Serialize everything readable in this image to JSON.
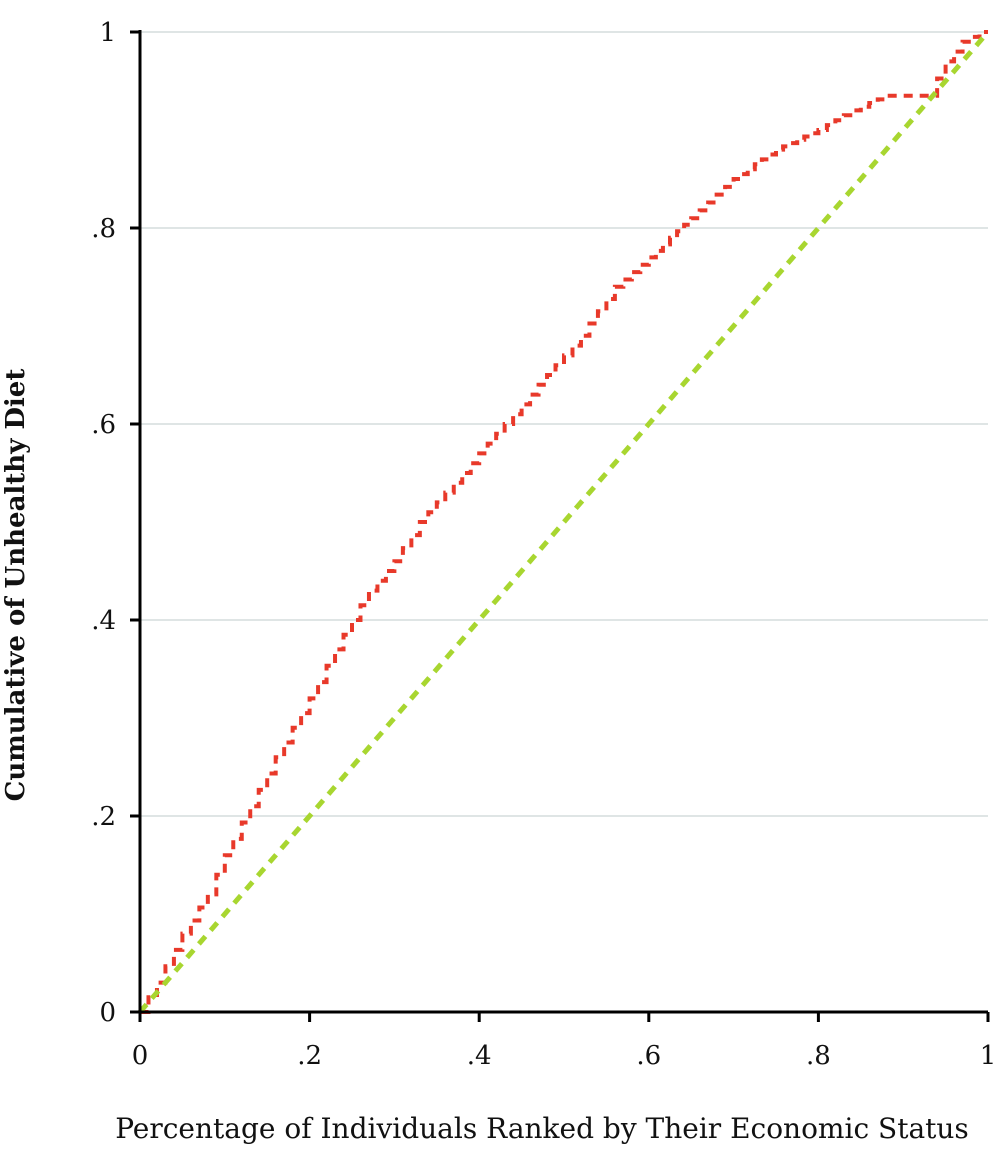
{
  "chart_data": {
    "type": "line",
    "title": "",
    "xlabel": "Percentage of Individuals Ranked by Their Economic Status",
    "ylabel": "Cumulative of Unhealthy Diet",
    "xlim": [
      0,
      1
    ],
    "ylim": [
      0,
      1
    ],
    "x_ticks": [
      0,
      0.2,
      0.4,
      0.6,
      0.8,
      1
    ],
    "x_tick_labels": [
      "0",
      ".2",
      ".4",
      ".6",
      ".8",
      "1"
    ],
    "y_ticks": [
      0,
      0.2,
      0.4,
      0.6,
      0.8,
      1
    ],
    "y_tick_labels": [
      "0",
      ".2",
      ".4",
      ".6",
      ".8",
      "1"
    ],
    "grid": "horizontal",
    "legend": "none",
    "series": [
      {
        "line_style": "dashed-stepped",
        "color": "#e8392a",
        "points": [
          [
            0,
            0
          ],
          [
            0.02,
            0.03
          ],
          [
            0.05,
            0.08
          ],
          [
            0.08,
            0.12
          ],
          [
            0.1,
            0.16
          ],
          [
            0.13,
            0.21
          ],
          [
            0.16,
            0.26
          ],
          [
            0.2,
            0.32
          ],
          [
            0.23,
            0.37
          ],
          [
            0.27,
            0.43
          ],
          [
            0.3,
            0.46
          ],
          [
            0.33,
            0.5
          ],
          [
            0.37,
            0.54
          ],
          [
            0.4,
            0.57
          ],
          [
            0.44,
            0.61
          ],
          [
            0.48,
            0.65
          ],
          [
            0.52,
            0.69
          ],
          [
            0.56,
            0.74
          ],
          [
            0.6,
            0.77
          ],
          [
            0.65,
            0.81
          ],
          [
            0.7,
            0.85
          ],
          [
            0.75,
            0.88
          ],
          [
            0.8,
            0.9
          ],
          [
            0.84,
            0.92
          ],
          [
            0.88,
            0.935
          ],
          [
            0.93,
            0.935
          ],
          [
            0.95,
            0.97
          ],
          [
            0.97,
            0.99
          ],
          [
            0.99,
            1.0
          ],
          [
            1,
            1
          ]
        ]
      },
      {
        "line_style": "dashed",
        "color": "#a8d630",
        "points": [
          [
            0,
            0
          ],
          [
            1,
            1
          ]
        ]
      }
    ]
  }
}
